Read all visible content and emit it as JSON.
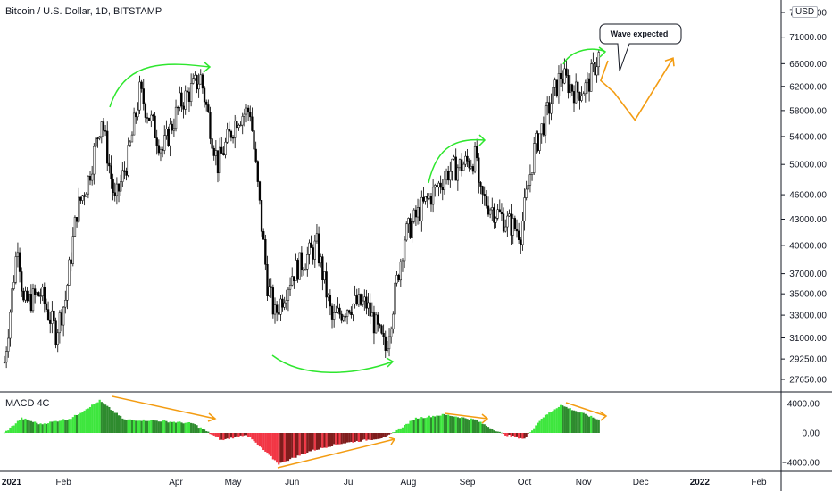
{
  "header": {
    "title": "Bitcoin / U.S. Dollar, 1D, BITSTAMP",
    "currency_button": "USD"
  },
  "indicator": {
    "label": "MACD 4C"
  },
  "callout": {
    "text": "Wave expected"
  },
  "colors": {
    "candle": "#000000",
    "arrow_green": "#2ee62e",
    "arrow_orange": "#f39c12",
    "macd_up_light": "#3ee63e",
    "macd_up_dark": "#2e8b2e",
    "macd_down_light": "#f23645",
    "macd_down_dark": "#7f1d1d",
    "axis_text": "#131722",
    "divider": "#131722"
  },
  "chart_data": {
    "type": "candlestick",
    "price_scale": "log",
    "price_axis_ticks": [
      "76000.00",
      "71000.00",
      "66000.00",
      "62000.00",
      "58000.00",
      "54000.00",
      "50000.00",
      "46000.00",
      "43000.00",
      "40000.00",
      "37000.00",
      "35000.00",
      "33000.00",
      "31000.00",
      "29250.00",
      "27650.00"
    ],
    "macd_axis_ticks": [
      "4000.00",
      "0.00",
      "−4000.00"
    ],
    "time_axis_ticks": [
      "2021",
      "Feb",
      "Apr",
      "May",
      "Jun",
      "Jul",
      "Aug",
      "Sep",
      "Oct",
      "Nov",
      "Dec",
      "2022",
      "Feb"
    ],
    "price_series": [
      {
        "date": "2021-01-01",
        "price": 29000
      },
      {
        "date": "2021-01-08",
        "price": 40500
      },
      {
        "date": "2021-01-11",
        "price": 34000
      },
      {
        "date": "2021-01-20",
        "price": 35000
      },
      {
        "date": "2021-01-28",
        "price": 31500
      },
      {
        "date": "2021-02-02",
        "price": 34500
      },
      {
        "date": "2021-02-08",
        "price": 44000
      },
      {
        "date": "2021-02-14",
        "price": 48000
      },
      {
        "date": "2021-02-21",
        "price": 57000
      },
      {
        "date": "2021-02-28",
        "price": 45000
      },
      {
        "date": "2021-03-07",
        "price": 51000
      },
      {
        "date": "2021-03-13",
        "price": 61000
      },
      {
        "date": "2021-03-25",
        "price": 52000
      },
      {
        "date": "2021-04-03",
        "price": 59000
      },
      {
        "date": "2021-04-14",
        "price": 63500
      },
      {
        "date": "2021-04-23",
        "price": 50000
      },
      {
        "date": "2021-05-03",
        "price": 57000
      },
      {
        "date": "2021-05-10",
        "price": 58000
      },
      {
        "date": "2021-05-19",
        "price": 36000
      },
      {
        "date": "2021-05-23",
        "price": 33000
      },
      {
        "date": "2021-06-01",
        "price": 37000
      },
      {
        "date": "2021-06-14",
        "price": 40000
      },
      {
        "date": "2021-06-22",
        "price": 32500
      },
      {
        "date": "2021-07-01",
        "price": 34000
      },
      {
        "date": "2021-07-10",
        "price": 34000
      },
      {
        "date": "2021-07-20",
        "price": 30000
      },
      {
        "date": "2021-07-30",
        "price": 41000
      },
      {
        "date": "2021-08-07",
        "price": 44000
      },
      {
        "date": "2021-08-22",
        "price": 49000
      },
      {
        "date": "2021-09-06",
        "price": 51000
      },
      {
        "date": "2021-09-07",
        "price": 46000
      },
      {
        "date": "2021-09-20",
        "price": 43000
      },
      {
        "date": "2021-09-29",
        "price": 41500
      },
      {
        "date": "2021-10-06",
        "price": 52000
      },
      {
        "date": "2021-10-20",
        "price": 64000
      },
      {
        "date": "2021-10-28",
        "price": 61000
      },
      {
        "date": "2021-11-03",
        "price": 62000
      },
      {
        "date": "2021-11-09",
        "price": 67500
      }
    ],
    "projection_path": [
      {
        "date": "2021-11-10",
        "price": 63000
      },
      {
        "date": "2021-11-17",
        "price": 61000
      },
      {
        "date": "2021-11-28",
        "price": 56500
      },
      {
        "date": "2021-12-18",
        "price": 67000
      }
    ],
    "macd_histogram_profile": [
      {
        "date": "2021-01-01",
        "value": 0
      },
      {
        "date": "2021-01-10",
        "value": 2000
      },
      {
        "date": "2021-01-20",
        "value": 1200
      },
      {
        "date": "2021-02-05",
        "value": 2000
      },
      {
        "date": "2021-02-20",
        "value": 4400
      },
      {
        "date": "2021-03-05",
        "value": 1800
      },
      {
        "date": "2021-03-20",
        "value": 1700
      },
      {
        "date": "2021-04-10",
        "value": 1300
      },
      {
        "date": "2021-04-25",
        "value": -1000
      },
      {
        "date": "2021-05-08",
        "value": -200
      },
      {
        "date": "2021-05-25",
        "value": -4200
      },
      {
        "date": "2021-06-10",
        "value": -2500
      },
      {
        "date": "2021-06-25",
        "value": -1500
      },
      {
        "date": "2021-07-20",
        "value": -600
      },
      {
        "date": "2021-08-05",
        "value": 2000
      },
      {
        "date": "2021-08-20",
        "value": 2500
      },
      {
        "date": "2021-09-05",
        "value": 1800
      },
      {
        "date": "2021-09-20",
        "value": -200
      },
      {
        "date": "2021-10-01",
        "value": -800
      },
      {
        "date": "2021-10-10",
        "value": 2000
      },
      {
        "date": "2021-10-20",
        "value": 3800
      },
      {
        "date": "2021-11-09",
        "value": 1800
      }
    ]
  }
}
